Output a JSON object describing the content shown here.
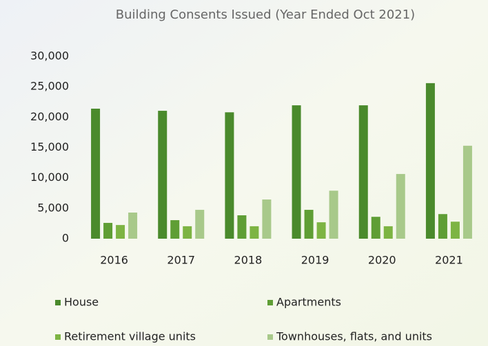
{
  "chart_data": {
    "type": "bar",
    "title": "Building Consents Issued (Year Ended Oct 2021)",
    "categories": [
      "2016",
      "2017",
      "2018",
      "2019",
      "2020",
      "2021"
    ],
    "series": [
      {
        "name": "House",
        "color": "#4a8a2c",
        "values": [
          21400,
          21050,
          20800,
          21950,
          21950,
          25600
        ]
      },
      {
        "name": "Apartments",
        "color": "#5f9e35",
        "values": [
          2600,
          3050,
          3850,
          4750,
          3600,
          4050
        ]
      },
      {
        "name": "Retirement village units",
        "color": "#7db443",
        "values": [
          2250,
          2050,
          2050,
          2700,
          2050,
          2800
        ]
      },
      {
        "name": "Townhouses, flats, and units",
        "color": "#a8c98a",
        "values": [
          4300,
          4750,
          6450,
          7900,
          10650,
          15300
        ]
      }
    ],
    "ylim": [
      0,
      30000
    ],
    "yticks": [
      0,
      {
        "value": 5000,
        "label": "5,000"
      },
      {
        "value": 10000,
        "label": "10,000"
      },
      {
        "value": 15000,
        "label": "15,000"
      },
      {
        "value": 20000,
        "label": "20,000"
      },
      {
        "value": 25000,
        "label": "25,000"
      },
      {
        "value": 30000,
        "label": "30,000"
      }
    ]
  }
}
